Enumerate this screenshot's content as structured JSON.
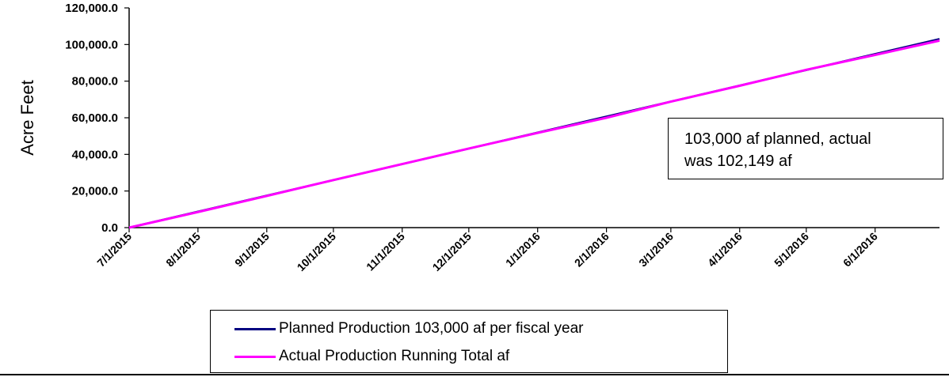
{
  "chart_data": {
    "type": "line",
    "ylabel": "Acre Feet",
    "ylim": [
      0,
      120000
    ],
    "yticks": [
      "0.0",
      "20,000.0",
      "40,000.0",
      "60,000.0",
      "80,000.0",
      "100,000.0",
      "120,000.0"
    ],
    "xticks": [
      "7/1/2015",
      "8/1/2015",
      "9/1/2015",
      "10/1/2015",
      "11/1/2015",
      "12/1/2015",
      "1/1/2016",
      "2/1/2016",
      "3/1/2016",
      "4/1/2016",
      "5/1/2016",
      "6/1/2016"
    ],
    "xlim": [
      "2015-07-01",
      "2016-06-30"
    ],
    "grid": false,
    "legend_position": "bottom",
    "series": [
      {
        "name": "Planned Production 103,000 af per fiscal year",
        "color": "#000080",
        "x": [
          "2015-07-01",
          "2016-06-30"
        ],
        "y": [
          0,
          103000
        ]
      },
      {
        "name": "Actual Production Running Total af",
        "color": "#ff00ff",
        "x": [
          "2015-07-01",
          "2015-08-01",
          "2015-09-01",
          "2015-10-01",
          "2015-11-01",
          "2015-12-01",
          "2016-01-01",
          "2016-02-01",
          "2016-03-01",
          "2016-04-01",
          "2016-05-01",
          "2016-06-01",
          "2016-06-30"
        ],
        "y": [
          0,
          8500,
          17300,
          26000,
          34700,
          43200,
          51700,
          60000,
          68800,
          77500,
          86200,
          94300,
          102149
        ]
      }
    ],
    "annotation": {
      "line1": "103,000  af planned, actual",
      "line2": "was 102,149  af"
    }
  }
}
